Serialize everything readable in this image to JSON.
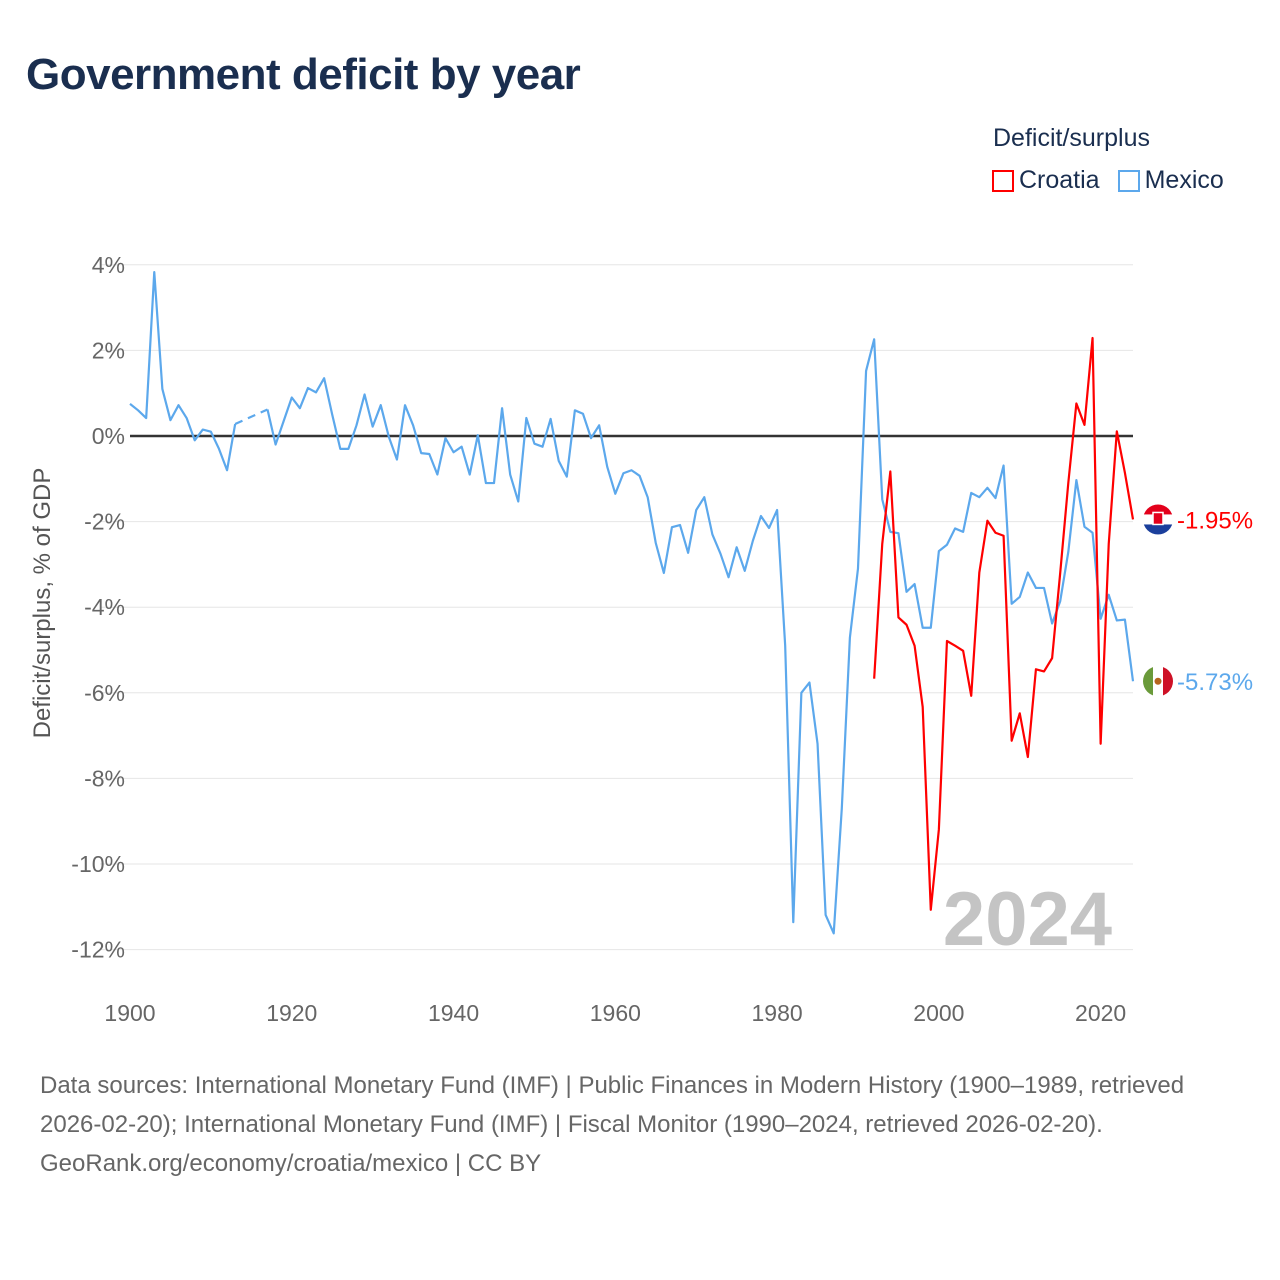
{
  "title": "Government deficit by year",
  "legend": {
    "title": "Deficit/surplus",
    "items": [
      {
        "name": "Croatia",
        "color": "#ff0000"
      },
      {
        "name": "Mexico",
        "color": "#5ca8ec"
      }
    ]
  },
  "footer": {
    "sources": "Data sources: International Monetary Fund (IMF) | Public Finances in Modern History (1900–1989, retrieved 2026-02-20); International Monetary Fund (IMF) | Fiscal Monitor (1990–2024, retrieved 2026-02-20).",
    "credit": "GeoRank.org/economy/croatia/mexico | CC BY"
  },
  "chart_data": {
    "type": "line",
    "title": "Government deficit by year",
    "ylabel": "Deficit/surplus, % of GDP",
    "xlabel": "",
    "xlim": [
      1900,
      2024
    ],
    "ylim": [
      -12,
      4
    ],
    "xticks": [
      1900,
      1920,
      1940,
      1960,
      1980,
      2000,
      2020
    ],
    "xtick_labels": [
      "1900",
      "1920",
      "1940",
      "1960",
      "1980",
      "2000",
      "2020"
    ],
    "yticks": [
      4,
      2,
      0,
      -2,
      -4,
      -6,
      -8,
      -10,
      -12
    ],
    "ytick_labels": [
      "4%",
      "2%",
      "0%",
      "-2%",
      "-4%",
      "-6%",
      "-8%",
      "-10%",
      "-12%"
    ],
    "watermark": "2024",
    "grid": true,
    "legend_position": "top-right",
    "series": [
      {
        "name": "Mexico",
        "color": "#5ca8ec",
        "start_year": 1900,
        "end_label": "-5.73%",
        "flag": "mexico-flag",
        "values": [
          0.75,
          0.6,
          0.42,
          3.83,
          1.1,
          0.37,
          0.72,
          0.42,
          -0.1,
          0.15,
          0.1,
          -0.3,
          -0.8,
          0.28,
          null,
          null,
          null,
          0.62,
          -0.2,
          0.35,
          0.9,
          0.65,
          1.12,
          1.02,
          1.35,
          0.5,
          -0.3,
          -0.3,
          0.25,
          0.97,
          0.22,
          0.72,
          -0.02,
          -0.55,
          0.72,
          0.25,
          -0.4,
          -0.42,
          -0.9,
          -0.05,
          -0.38,
          -0.25,
          -0.9,
          0.02,
          -1.1,
          -1.1,
          0.65,
          -0.9,
          -1.53,
          0.42,
          -0.18,
          -0.25,
          0.4,
          -0.58,
          -0.95,
          0.6,
          0.52,
          -0.05,
          0.25,
          -0.72,
          -1.35,
          -0.87,
          -0.8,
          -0.93,
          -1.43,
          -2.5,
          -3.2,
          -2.13,
          -2.08,
          -2.73,
          -1.73,
          -1.43,
          -2.3,
          -2.75,
          -3.3,
          -2.6,
          -3.15,
          -2.45,
          -1.87,
          -2.15,
          -1.73,
          -4.9,
          -11.36,
          -6.0,
          -5.76,
          -7.19,
          -11.19,
          -11.62,
          -8.7,
          -4.71,
          -3.1,
          1.52,
          2.26,
          -1.48,
          -2.24,
          -2.27,
          -3.64,
          -3.46,
          -4.48,
          -4.48,
          -2.69,
          -2.54,
          -2.16,
          -2.24,
          -1.33,
          -1.43,
          -1.21,
          -1.45,
          -0.69,
          -3.92,
          -3.76,
          -3.19,
          -3.55,
          -3.55,
          -4.38,
          -3.86,
          -2.71,
          -1.03,
          -2.12,
          -2.26,
          -4.27,
          -3.71,
          -4.31,
          -4.29,
          -5.73
        ]
      },
      {
        "name": "Croatia",
        "color": "#ff0000",
        "start_year": 1992,
        "end_label": "-1.95%",
        "flag": "croatia-flag",
        "values": [
          -5.67,
          -2.52,
          -0.83,
          -4.24,
          -4.41,
          -4.9,
          -6.33,
          -11.07,
          -9.19,
          -4.79,
          -4.9,
          -5.02,
          -6.07,
          -3.19,
          -1.98,
          -2.26,
          -2.33,
          -7.12,
          -6.48,
          -7.5,
          -5.45,
          -5.5,
          -5.19,
          -3.2,
          -1.1,
          0.76,
          0.26,
          2.29,
          -7.19,
          -2.52,
          0.11,
          -0.86,
          -1.95
        ]
      }
    ]
  }
}
